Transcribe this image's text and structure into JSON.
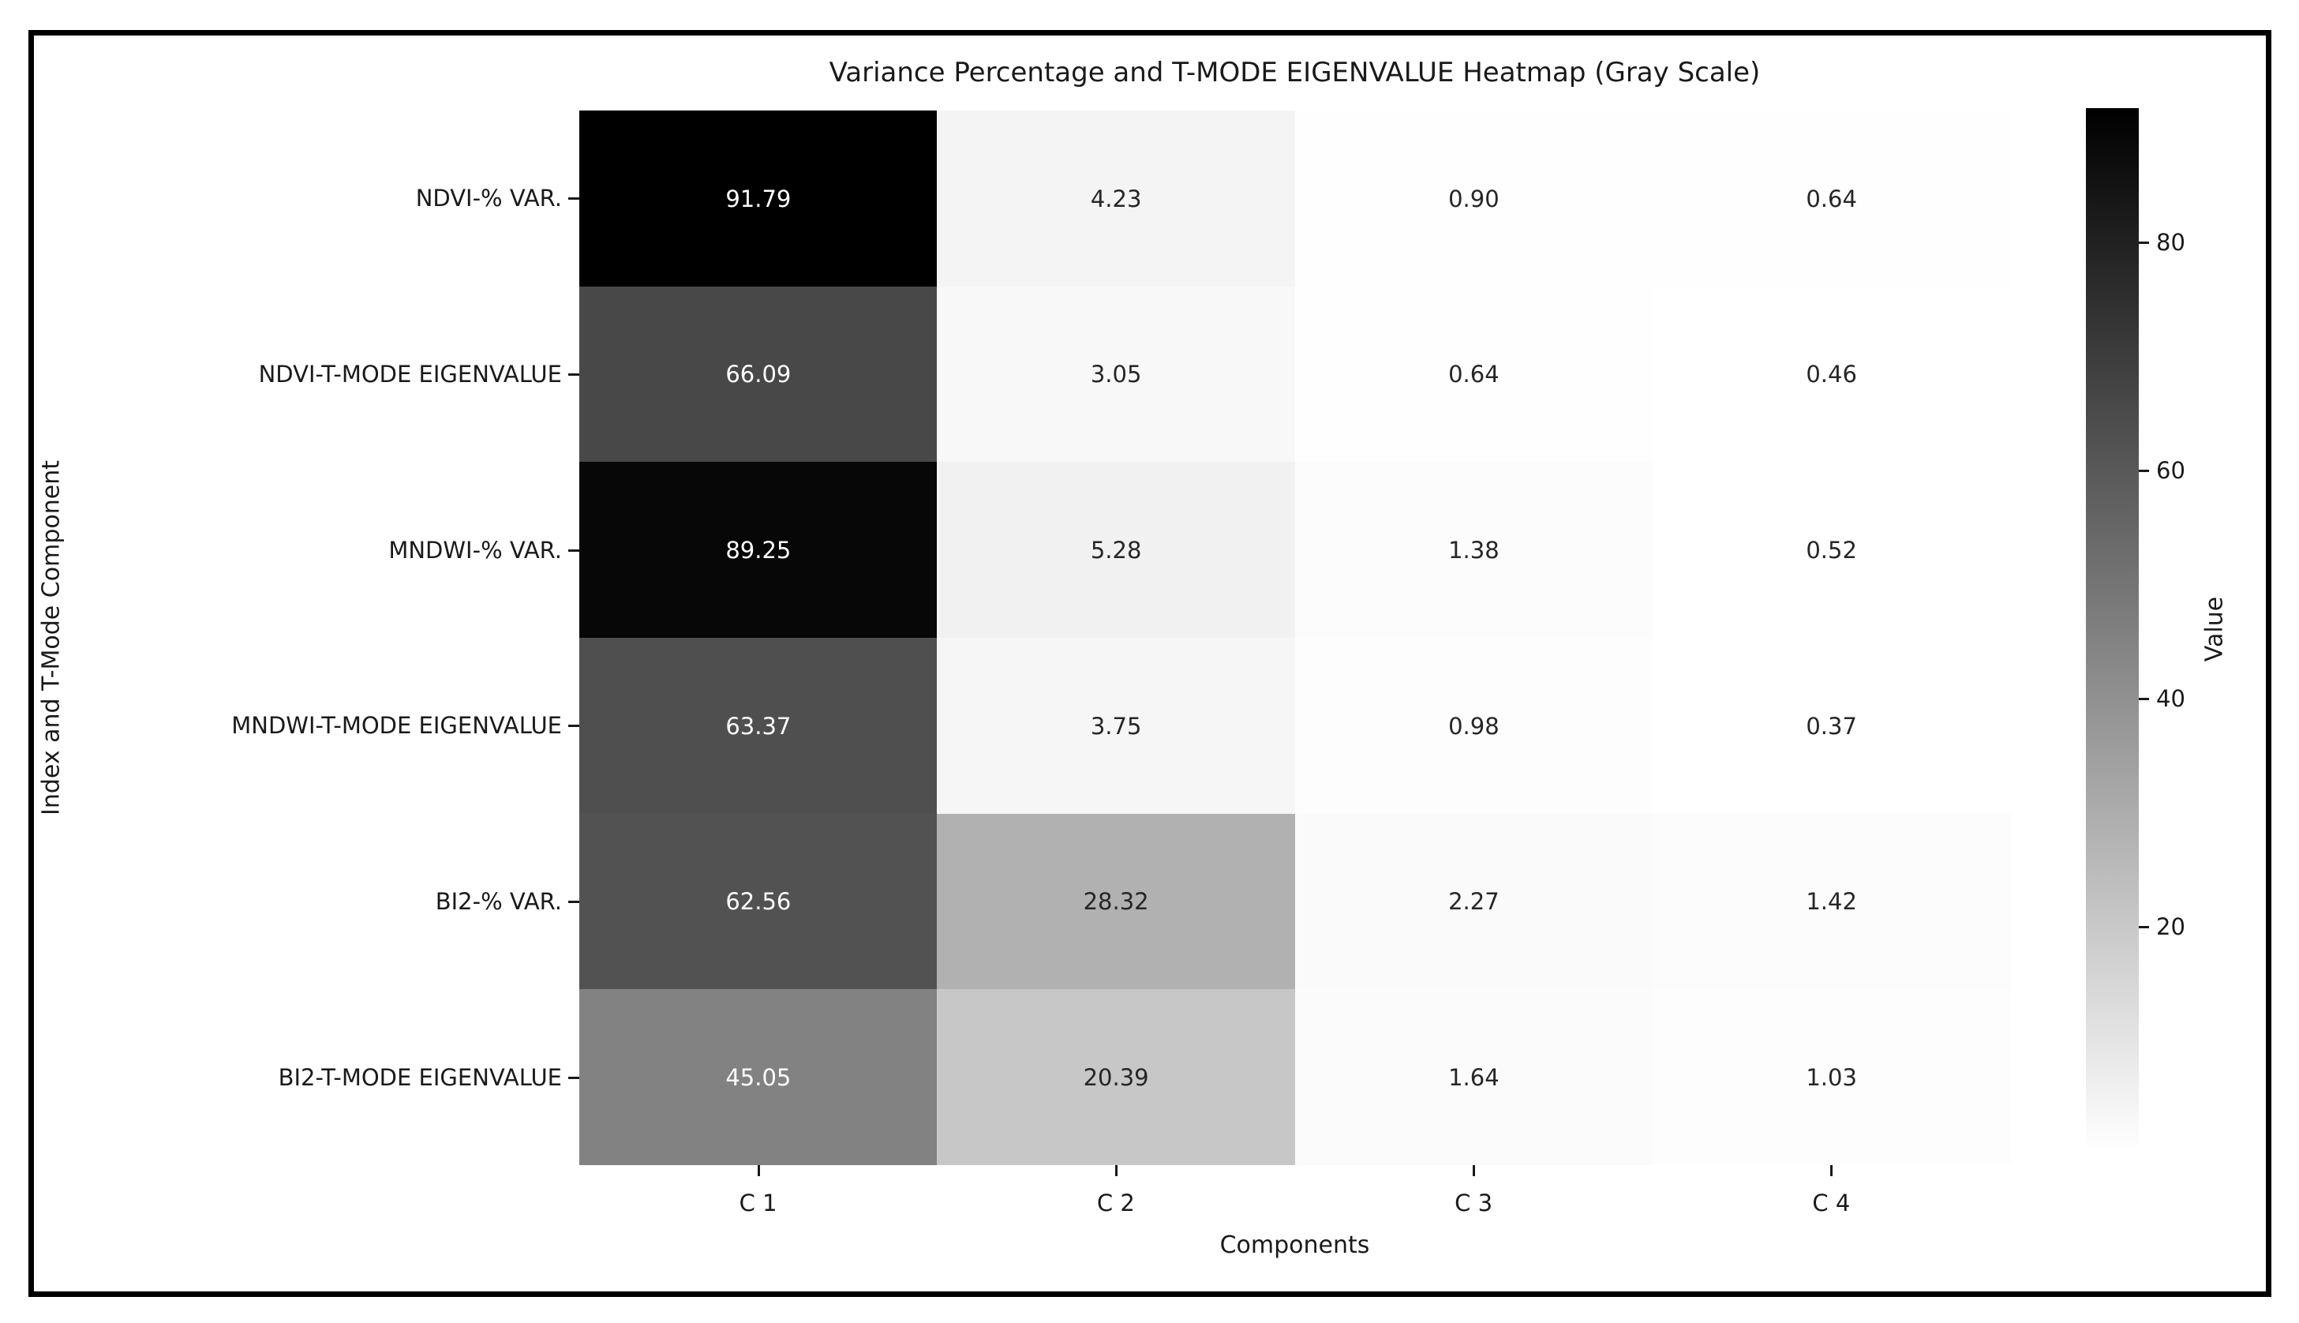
{
  "title": "Variance Percentage and T-MODE EIGENVALUE Heatmap (Gray Scale)",
  "chart_data": {
    "type": "heatmap",
    "title": "Variance Percentage and T-MODE EIGENVALUE Heatmap (Gray Scale)",
    "xlabel": "Components",
    "ylabel": "Index and T-Mode Component",
    "columns": [
      "C 1",
      "C 2",
      "C 3",
      "C 4"
    ],
    "rows": [
      "NDVI-% VAR.",
      "NDVI-T-MODE EIGENVALUE",
      "MNDWI-% VAR.",
      "MNDWI-T-MODE EIGENVALUE",
      "BI2-% VAR.",
      "BI2-T-MODE EIGENVALUE"
    ],
    "values": [
      [
        91.79,
        4.23,
        0.9,
        0.64
      ],
      [
        66.09,
        3.05,
        0.64,
        0.46
      ],
      [
        89.25,
        5.28,
        1.38,
        0.52
      ],
      [
        63.37,
        3.75,
        0.98,
        0.37
      ],
      [
        62.56,
        28.32,
        2.27,
        1.42
      ],
      [
        45.05,
        20.39,
        1.64,
        1.03
      ]
    ],
    "colormap": "gray_r",
    "vmin": 0.37,
    "vmax": 91.79,
    "value_format_decimals": 2,
    "grid": false,
    "legend_position": "right-colorbar",
    "colorbar": {
      "label": "Value",
      "ticks": [
        20,
        40,
        60,
        80
      ]
    }
  },
  "colors": {
    "annotation_dark": "#262626",
    "annotation_light": "#ffffff",
    "frame": "#000000",
    "background": "#ffffff"
  }
}
